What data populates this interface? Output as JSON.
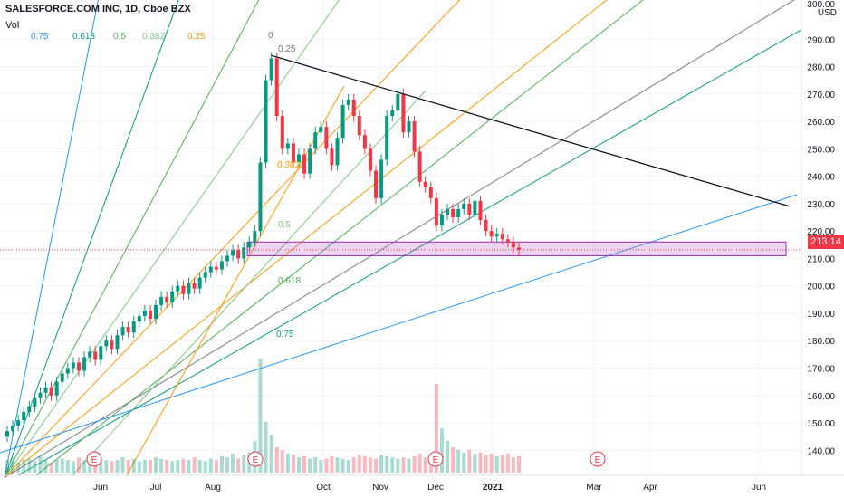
{
  "header": {
    "title": "SALESFORCE.COM INC, 1D, Cboe BZX",
    "volume_label": "Vol"
  },
  "fan_legend": [
    {
      "label": "0.75",
      "color": "#2196f3"
    },
    {
      "label": "0.618",
      "color": "#089981"
    },
    {
      "label": "0.5",
      "color": "#4caf50"
    },
    {
      "label": "0.382",
      "color": "#81c784"
    },
    {
      "label": "0.25",
      "color": "#ff9800"
    }
  ],
  "price_axis": {
    "unit": "USD",
    "top_label": "300.00",
    "ticks": [
      "290.00",
      "280.00",
      "270.00",
      "260.00",
      "250.00",
      "240.00",
      "230.00",
      "220.00",
      "210.00",
      "200.00",
      "190.00",
      "180.00",
      "170.00",
      "160.00",
      "150.00",
      "140.00"
    ],
    "last_price": "213.14"
  },
  "time_axis": {
    "ticks": [
      "Jun",
      "Jul",
      "Aug",
      "Oct",
      "Nov",
      "Dec",
      "2021",
      "Mar",
      "Apr",
      "Jun"
    ]
  },
  "chart_data": {
    "type": "candlestick",
    "title": "SALESFORCE.COM INC, 1D, Cboe BZX",
    "ylabel": "USD",
    "ylim": [
      130,
      300
    ],
    "last_price": 213.14,
    "price_ticks": [
      290,
      280,
      270,
      260,
      250,
      240,
      230,
      220,
      210,
      200,
      190,
      180,
      170,
      160,
      150,
      140
    ],
    "earnings_markers": [
      "E",
      "E",
      "E",
      "E"
    ],
    "fan_levels_on_chart": [
      "0",
      "0.25",
      "0.382",
      "0.5",
      "0.618",
      "0.75"
    ],
    "highlight_zone": {
      "from": 211,
      "to": 216
    },
    "trendline": {
      "from": 284,
      "to": 229
    },
    "close_path": [
      147,
      149,
      151,
      154,
      156,
      159,
      161,
      163,
      160,
      165,
      168,
      170,
      172,
      169,
      174,
      176,
      173,
      178,
      180,
      177,
      182,
      185,
      183,
      187,
      189,
      191,
      188,
      193,
      196,
      194,
      198,
      200,
      197,
      201,
      199,
      203,
      205,
      207,
      206,
      209,
      211,
      213,
      210,
      214,
      216,
      220,
      245,
      275,
      283,
      262,
      250,
      252,
      245,
      248,
      241,
      250,
      256,
      258,
      250,
      244,
      254,
      266,
      268,
      262,
      255,
      250,
      242,
      232,
      246,
      262,
      264,
      270,
      256,
      260,
      249,
      238,
      236,
      232,
      222,
      226,
      228,
      225,
      228,
      230,
      226,
      231,
      224,
      220,
      218,
      219,
      217,
      216,
      214,
      213.14
    ],
    "volume_profile": [
      1,
      1.2,
      0.8,
      1,
      1.1,
      0.9,
      1.3,
      1,
      0.8,
      1,
      1.1,
      1,
      0.9,
      1.2,
      1,
      1,
      0.8,
      1.1,
      1,
      0.9,
      1,
      1.2,
      1,
      1.1,
      0.9,
      1,
      1,
      1.2,
      1.1,
      1,
      0.9,
      1,
      1.1,
      1,
      1.2,
      1,
      0.9,
      1.1,
      1,
      1.3,
      1.2,
      1.5,
      1.1,
      1.4,
      1.6,
      2.5,
      9,
      4,
      3,
      2,
      1.8,
      1.5,
      1.4,
      1.2,
      1.3,
      1.1,
      1.2,
      1,
      1.1,
      1.3,
      1.2,
      1.1,
      1,
      1.2,
      1.4,
      1.3,
      1.2,
      1.1,
      1.4,
      1.3,
      1.2,
      1.1,
      1.2,
      1.1,
      1.3,
      1.5,
      1.2,
      1.4,
      7,
      3.5,
      2.5,
      2,
      1.8,
      1.6,
      1.8,
      1.5,
      1.6,
      1.4,
      1.5,
      1.3,
      1.4,
      1.5,
      1.2,
      1.3
    ]
  }
}
